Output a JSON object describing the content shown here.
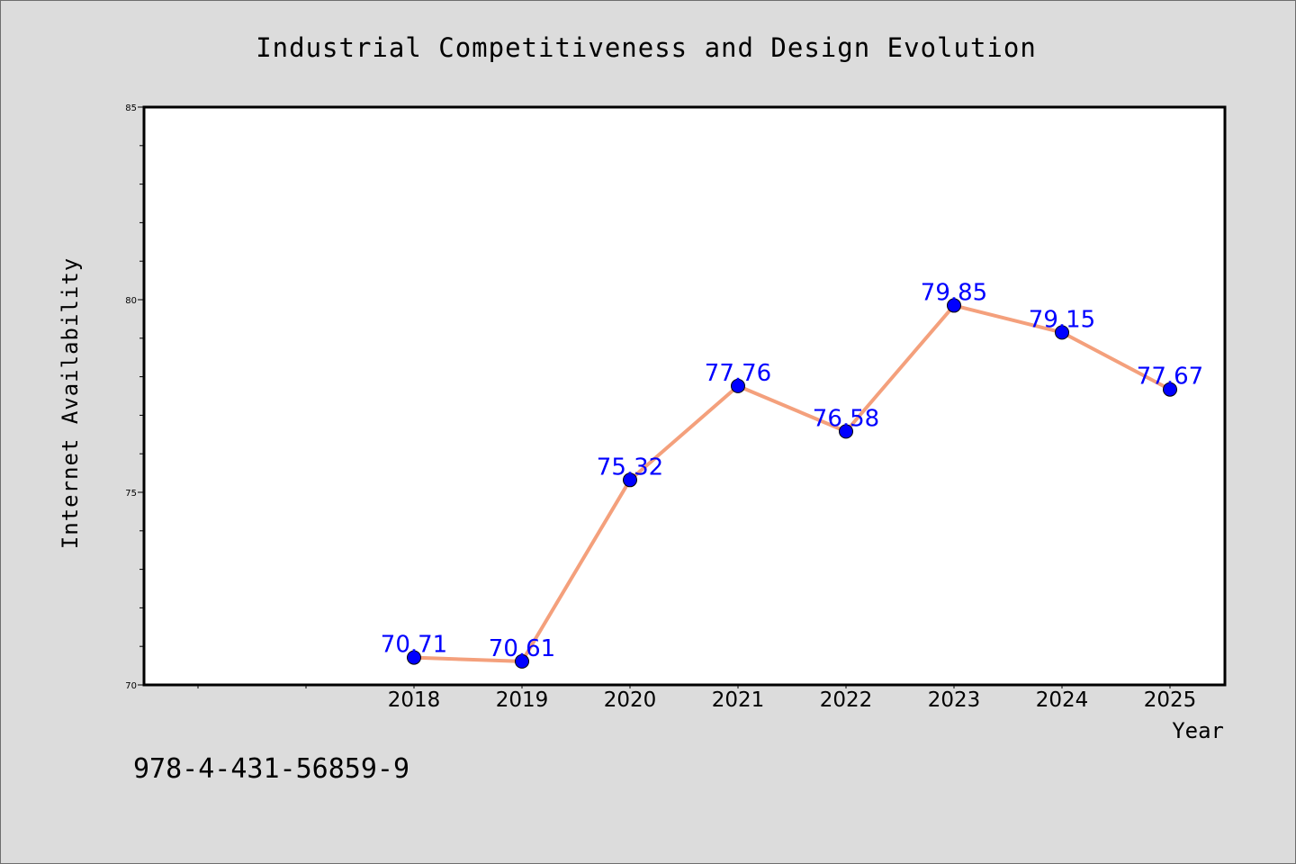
{
  "chart_data": {
    "type": "line",
    "title": "Industrial Competitiveness and Design Evolution",
    "xlabel": "Year",
    "ylabel": "Internet Availability",
    "categories": [
      "2018",
      "2019",
      "2020",
      "2021",
      "2022",
      "2023",
      "2024",
      "2025"
    ],
    "values": [
      70.71,
      70.61,
      75.32,
      77.76,
      76.58,
      79.85,
      79.15,
      77.67
    ],
    "data_labels": [
      "70.71",
      "70.61",
      "75.32",
      "77.76",
      "76.58",
      "79.85",
      "79.15",
      "77.67"
    ],
    "ylim": [
      70,
      85
    ],
    "yticks": [
      "70",
      "75",
      "80",
      "85"
    ],
    "grid": false,
    "line_color": "#f4a07c",
    "marker_color": "#0000ff",
    "label_color": "#0000ff",
    "background": "#dcdcdc",
    "plot_background": "#ffffff"
  },
  "footer": {
    "code": "978-4-431-56859-9"
  }
}
